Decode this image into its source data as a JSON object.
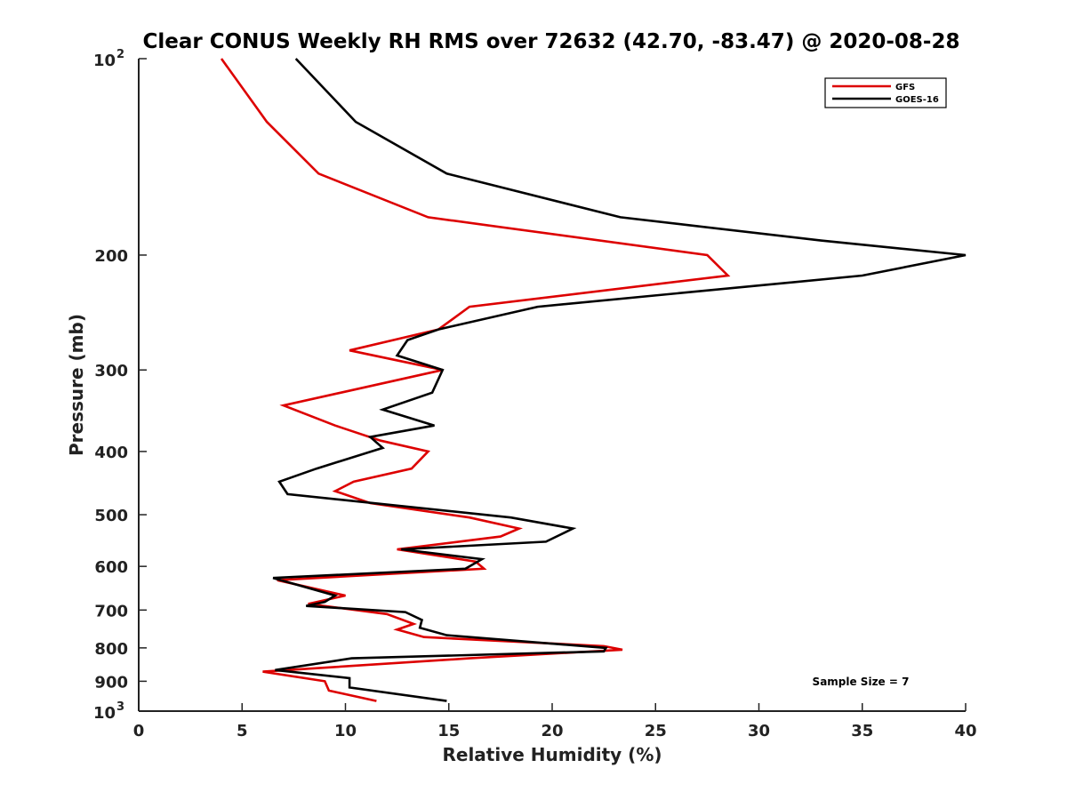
{
  "chart_data": {
    "type": "line",
    "title": "Clear CONUS Weekly RH RMS over 72632 (42.70, -83.47) @ 2020-08-28",
    "xlabel": "Relative Humidity (%)",
    "ylabel": "Pressure (mb)",
    "xlim": [
      0,
      40
    ],
    "ylim": [
      1000,
      100
    ],
    "y_scale": "log",
    "x_ticks": [
      0,
      5,
      10,
      15,
      20,
      25,
      30,
      35,
      40
    ],
    "x_tick_labels": [
      "0",
      "5",
      "10",
      "15",
      "20",
      "25",
      "30",
      "35",
      "40"
    ],
    "y_ticks": [
      {
        "value": 100,
        "label": "10",
        "exp": "2"
      },
      {
        "value": 200,
        "label": "200"
      },
      {
        "value": 300,
        "label": "300"
      },
      {
        "value": 400,
        "label": "400"
      },
      {
        "value": 500,
        "label": "500"
      },
      {
        "value": 600,
        "label": "600"
      },
      {
        "value": 700,
        "label": "700"
      },
      {
        "value": 800,
        "label": "800"
      },
      {
        "value": 900,
        "label": "900"
      },
      {
        "value": 1000,
        "label": "10",
        "exp": "3"
      }
    ],
    "grid": false,
    "legend_position": "top-right",
    "annotation": "Sample Size = 7",
    "series": [
      {
        "name": "GFS",
        "color": "#dd0000",
        "points": [
          [
            4.0,
            100
          ],
          [
            6.2,
            125
          ],
          [
            8.7,
            150
          ],
          [
            14.0,
            175
          ],
          [
            27.5,
            200
          ],
          [
            28.5,
            215
          ],
          [
            16.0,
            240
          ],
          [
            14.5,
            260
          ],
          [
            10.2,
            280
          ],
          [
            14.7,
            300
          ],
          [
            7.0,
            340
          ],
          [
            9.5,
            365
          ],
          [
            11.7,
            385
          ],
          [
            14.0,
            400
          ],
          [
            13.2,
            425
          ],
          [
            10.4,
            445
          ],
          [
            9.5,
            460
          ],
          [
            11.2,
            480
          ],
          [
            16.0,
            505
          ],
          [
            18.4,
            525
          ],
          [
            17.5,
            540
          ],
          [
            12.5,
            565
          ],
          [
            16.3,
            590
          ],
          [
            16.7,
            605
          ],
          [
            6.7,
            630
          ],
          [
            10.0,
            665
          ],
          [
            8.2,
            685
          ],
          [
            12.0,
            710
          ],
          [
            13.3,
            735
          ],
          [
            12.5,
            750
          ],
          [
            13.8,
            770
          ],
          [
            22.5,
            795
          ],
          [
            23.4,
            805
          ],
          [
            16.0,
            830
          ],
          [
            6.0,
            870
          ],
          [
            9.0,
            900
          ],
          [
            9.2,
            930
          ],
          [
            11.5,
            965
          ]
        ]
      },
      {
        "name": "GOES-16",
        "color": "#000000",
        "points": [
          [
            7.6,
            100
          ],
          [
            10.5,
            125
          ],
          [
            14.9,
            150
          ],
          [
            23.3,
            175
          ],
          [
            33.0,
            190
          ],
          [
            40.0,
            200
          ],
          [
            35.0,
            215
          ],
          [
            19.3,
            240
          ],
          [
            14.5,
            260
          ],
          [
            13.0,
            270
          ],
          [
            12.5,
            285
          ],
          [
            14.7,
            300
          ],
          [
            14.2,
            325
          ],
          [
            11.8,
            345
          ],
          [
            14.3,
            365
          ],
          [
            11.2,
            380
          ],
          [
            11.8,
            395
          ],
          [
            8.6,
            425
          ],
          [
            6.8,
            445
          ],
          [
            7.2,
            465
          ],
          [
            18.0,
            505
          ],
          [
            21.0,
            525
          ],
          [
            19.7,
            550
          ],
          [
            12.7,
            565
          ],
          [
            16.6,
            585
          ],
          [
            15.8,
            605
          ],
          [
            6.5,
            625
          ],
          [
            9.5,
            665
          ],
          [
            9.0,
            680
          ],
          [
            8.1,
            690
          ],
          [
            12.9,
            705
          ],
          [
            13.7,
            725
          ],
          [
            13.6,
            745
          ],
          [
            14.9,
            765
          ],
          [
            22.6,
            800
          ],
          [
            22.5,
            810
          ],
          [
            10.3,
            830
          ],
          [
            6.6,
            865
          ],
          [
            10.2,
            890
          ],
          [
            10.2,
            920
          ],
          [
            14.9,
            965
          ]
        ]
      }
    ]
  }
}
